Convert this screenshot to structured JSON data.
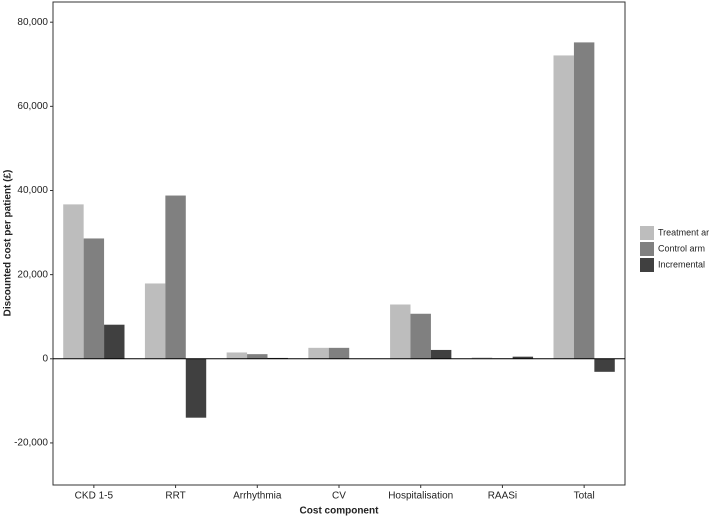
{
  "chart_data": {
    "type": "bar",
    "x_label": "Cost component",
    "y_label": "Discounted cost per patient (£)",
    "categories": [
      "CKD 1-5",
      "RRT",
      "Arrhythmia",
      "CV",
      "Hospitalisation",
      "RAASi",
      "Total"
    ],
    "series": [
      {
        "name": "Treatment arm",
        "color": "#bdbdbd",
        "values": [
          36700,
          17900,
          1500,
          2600,
          12900,
          300,
          72100
        ]
      },
      {
        "name": "Control arm",
        "color": "#808080",
        "values": [
          28600,
          38800,
          1100,
          2600,
          10700,
          100,
          75200
        ]
      },
      {
        "name": "Incremental",
        "color": "#404040",
        "values": [
          8100,
          -14000,
          200,
          0,
          2100,
          500,
          -3100
        ]
      }
    ],
    "ylim": [
      -30000,
      84800
    ],
    "yticks": [
      {
        "value": -20000,
        "label": "-20,000"
      },
      0,
      {
        "value": 20000,
        "label": "20,000"
      },
      {
        "value": 40000,
        "label": "40,000"
      },
      {
        "value": 60000,
        "label": "60,000"
      },
      {
        "value": 80000,
        "label": "80,000"
      }
    ],
    "grid": false,
    "legend": "right"
  }
}
